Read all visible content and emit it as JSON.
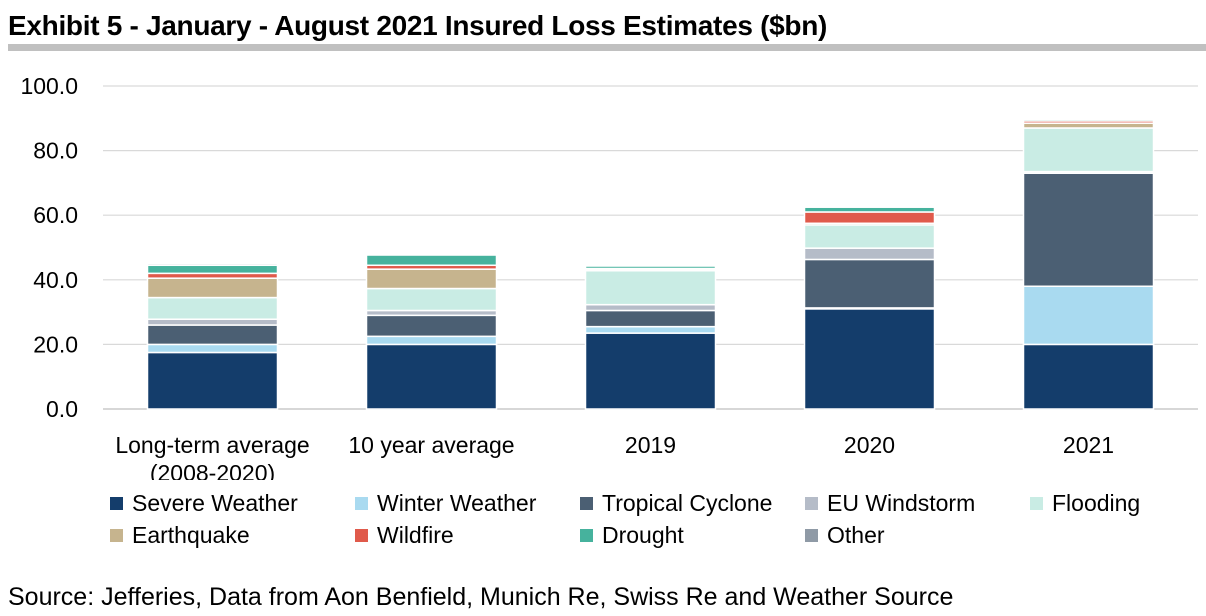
{
  "title": "Exhibit 5 - January - August 2021 Insured Loss Estimates ($bn)",
  "source": "Source: Jefferies, Data from Aon Benfield, Munich Re, Swiss Re and Weather Source",
  "chart_data": {
    "type": "bar",
    "stacked": true,
    "title": "",
    "xlabel": "",
    "ylabel": "",
    "ylim": [
      0,
      100
    ],
    "yticks": [
      "0.0",
      "20.0",
      "40.0",
      "60.0",
      "80.0",
      "100.0"
    ],
    "categories": [
      [
        "Long-term average",
        "(2008-2020)"
      ],
      [
        "10 year average"
      ],
      [
        "2019"
      ],
      [
        "2020"
      ],
      [
        "2021"
      ]
    ],
    "grid": true,
    "legend_position": "bottom",
    "series": [
      {
        "name": "Severe Weather",
        "color": "#143d6b",
        "values": [
          17.5,
          20.0,
          23.5,
          31.0,
          20.0
        ]
      },
      {
        "name": "Winter Weather",
        "color": "#a9daf0",
        "values": [
          2.5,
          2.5,
          2.0,
          0.3,
          18.0
        ]
      },
      {
        "name": "Tropical Cyclone",
        "color": "#4b5f73",
        "values": [
          6.0,
          6.5,
          5.0,
          15.0,
          35.0
        ]
      },
      {
        "name": "EU Windstorm",
        "color": "#b5bcc8",
        "values": [
          1.8,
          1.5,
          1.8,
          3.5,
          0.5
        ]
      },
      {
        "name": "Flooding",
        "color": "#c9ece4",
        "values": [
          6.7,
          6.8,
          10.5,
          7.2,
          13.5
        ]
      },
      {
        "name": "Earthquake",
        "color": "#c6b48e",
        "values": [
          6.0,
          6.0,
          0.5,
          0.5,
          1.5
        ]
      },
      {
        "name": "Wildfire",
        "color": "#e05a4b",
        "values": [
          1.5,
          1.2,
          0.2,
          3.5,
          0.7
        ]
      },
      {
        "name": "Drought",
        "color": "#46b29d",
        "values": [
          2.5,
          3.2,
          0.8,
          1.5,
          0.5
        ]
      },
      {
        "name": "Other",
        "color": "#8f9aa6",
        "values": [
          0.5,
          0.3,
          0.2,
          0.2,
          0.3
        ]
      }
    ]
  }
}
